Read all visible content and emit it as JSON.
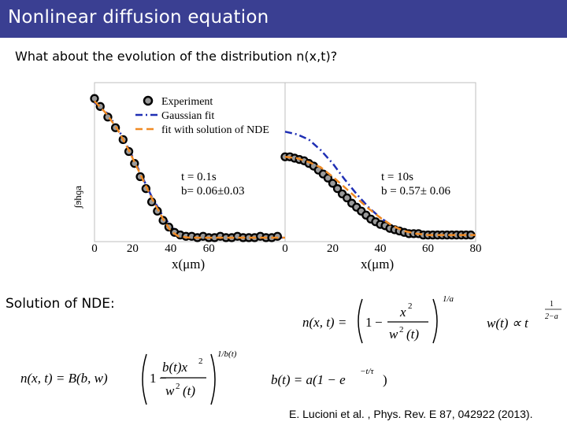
{
  "slide": {
    "title": "Nonlinear diffusion equation",
    "question": "What about the evolution of the distribution n(x,t)?",
    "solution_label": "Solution of NDE:",
    "citation": "E. Lucioni et al. , Phys. Rev. E 87, 042922 (2013)."
  },
  "chart_data": [
    {
      "type": "scatter",
      "title": "",
      "xlabel": "x(μm)",
      "ylabel": "",
      "xlim": [
        0,
        100
      ],
      "ylim": [
        0,
        1.2
      ],
      "x_ticks": [
        "0",
        "20",
        "40",
        "60"
      ],
      "legend": [
        "Experiment",
        "Gaussian fit",
        "fit with solution of NDE"
      ],
      "legend_position": "top-right",
      "annotation_t": "t = 0.1s",
      "annotation_b": "b= 0.06±0.03",
      "y_axis_label_fragment": "ɐɓɥɕʃ",
      "colors": {
        "experiment_fill": "#9a9a9a",
        "gaussian": "#1f2fb4",
        "nde": "#f08a24"
      },
      "series": [
        {
          "name": "Experiment",
          "x": [
            0,
            3,
            7,
            11,
            15,
            18,
            21,
            24,
            27,
            30,
            33,
            36,
            39,
            42,
            45,
            48,
            51,
            54,
            57,
            60,
            63,
            66,
            69,
            72,
            75,
            78,
            81,
            84,
            87,
            90,
            93,
            96
          ],
          "y": [
            1.08,
            1.02,
            0.94,
            0.86,
            0.77,
            0.68,
            0.59,
            0.49,
            0.4,
            0.3,
            0.23,
            0.16,
            0.11,
            0.07,
            0.05,
            0.04,
            0.04,
            0.03,
            0.04,
            0.03,
            0.03,
            0.04,
            0.03,
            0.03,
            0.04,
            0.03,
            0.03,
            0.03,
            0.04,
            0.03,
            0.03,
            0.04
          ]
        },
        {
          "name": "Gaussian fit",
          "x": [
            0,
            6,
            12,
            18,
            24,
            30,
            36,
            42,
            48,
            54,
            60,
            70,
            80,
            90,
            100
          ],
          "y": [
            1.05,
            0.98,
            0.86,
            0.7,
            0.52,
            0.34,
            0.19,
            0.09,
            0.05,
            0.04,
            0.03,
            0.03,
            0.03,
            0.03,
            0.03
          ]
        },
        {
          "name": "fit with solution of NDE",
          "x": [
            0,
            6,
            12,
            18,
            24,
            30,
            36,
            40,
            44,
            50,
            60,
            70,
            80,
            90,
            100
          ],
          "y": [
            1.06,
            0.97,
            0.85,
            0.69,
            0.51,
            0.33,
            0.17,
            0.08,
            0.04,
            0.03,
            0.03,
            0.03,
            0.03,
            0.03,
            0.03
          ]
        }
      ]
    },
    {
      "type": "scatter",
      "title": "",
      "xlabel": "x(μm)",
      "ylabel": "",
      "xlim": [
        0,
        80
      ],
      "ylim": [
        0,
        1.2
      ],
      "x_ticks": [
        "0",
        "20",
        "40",
        "60",
        "80"
      ],
      "annotation_t": "t = 10s",
      "annotation_b": "b = 0.57± 0.06",
      "series": [
        {
          "name": "Experiment",
          "x": [
            0,
            2,
            4,
            6,
            8,
            10,
            12,
            14,
            16,
            18,
            20,
            22,
            24,
            26,
            28,
            30,
            32,
            34,
            36,
            38,
            40,
            42,
            44,
            46,
            48,
            50,
            52,
            54,
            56,
            58,
            60,
            62,
            64,
            66,
            68,
            70,
            72,
            74,
            76,
            78
          ],
          "y": [
            0.64,
            0.64,
            0.63,
            0.62,
            0.61,
            0.59,
            0.57,
            0.54,
            0.51,
            0.48,
            0.44,
            0.4,
            0.36,
            0.33,
            0.29,
            0.26,
            0.23,
            0.2,
            0.17,
            0.15,
            0.13,
            0.12,
            0.1,
            0.09,
            0.08,
            0.07,
            0.06,
            0.06,
            0.06,
            0.05,
            0.05,
            0.05,
            0.05,
            0.05,
            0.05,
            0.05,
            0.05,
            0.05,
            0.05,
            0.05
          ]
        },
        {
          "name": "Gaussian fit",
          "x": [
            0,
            5,
            10,
            15,
            20,
            25,
            30,
            35,
            40,
            45,
            50,
            55,
            60,
            65,
            70,
            75,
            80
          ],
          "y": [
            0.83,
            0.81,
            0.77,
            0.69,
            0.59,
            0.47,
            0.36,
            0.26,
            0.18,
            0.12,
            0.08,
            0.06,
            0.05,
            0.05,
            0.05,
            0.05,
            0.05
          ]
        },
        {
          "name": "fit with solution of NDE",
          "x": [
            0,
            5,
            10,
            15,
            20,
            25,
            30,
            35,
            40,
            45,
            50,
            55,
            60,
            65,
            70,
            75,
            80
          ],
          "y": [
            0.64,
            0.63,
            0.6,
            0.56,
            0.49,
            0.41,
            0.33,
            0.25,
            0.18,
            0.12,
            0.08,
            0.06,
            0.05,
            0.05,
            0.05,
            0.05,
            0.05
          ]
        }
      ]
    }
  ],
  "equations": {
    "eq1": {
      "lhs": "n(x, t) = ",
      "one": "1",
      "minus": "−",
      "num": "x",
      "num_exp": "2",
      "den": "w",
      "den_exp": "2",
      "den_tail": "(t)",
      "outer_exp": "1/a"
    },
    "eq2": {
      "lhs": "w(t) ∝ t",
      "exp_num": "1",
      "exp_den": "2−a"
    },
    "eq3": {
      "lhs": "n(x, t) = B(b, w)",
      "one": "1",
      "minus": "−",
      "num": "b(t)x",
      "num_exp": "2",
      "den": "w",
      "den_exp": "2",
      "den_tail": "(t)",
      "outer_exp": "1/b(t)"
    },
    "eq4": {
      "text": "b(t) = a(1 − e",
      "exp": "−t/τ",
      "tail": ")"
    }
  }
}
